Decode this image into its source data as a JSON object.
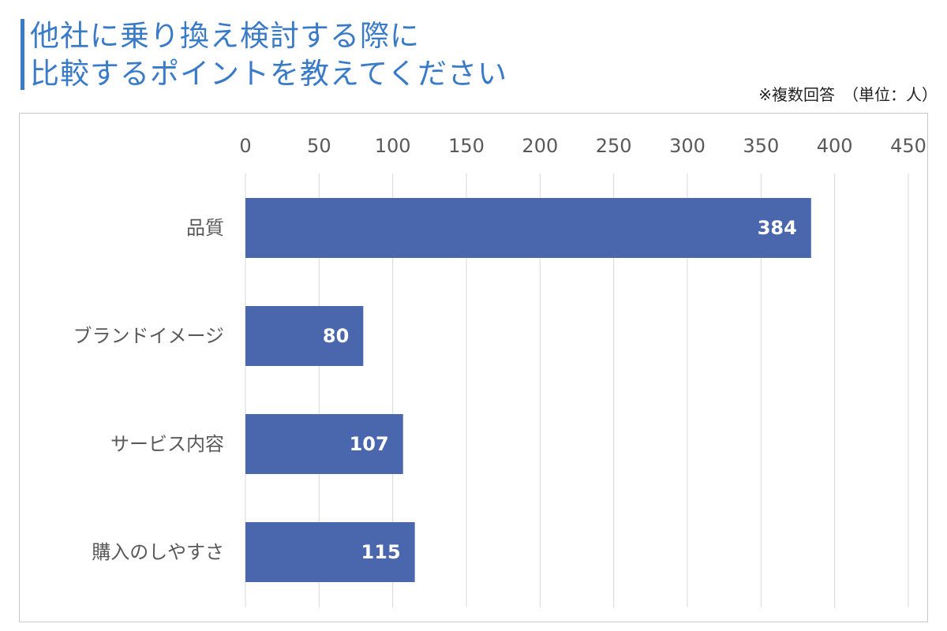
{
  "title_lines": [
    "他社に乗り換え検討する際に",
    "比較するポイントを教えてください"
  ],
  "note": "※複数回答　（単位：人）",
  "colors": {
    "title": "#3a7bc8",
    "bar": "#4a67ae",
    "grid": "#d9d9d9",
    "label": "#595959",
    "value_label": "#ffffff"
  },
  "chart_data": {
    "type": "bar",
    "orientation": "horizontal",
    "categories": [
      "品質",
      "ブランドイメージ",
      "サービス内容",
      "購入のしやすさ"
    ],
    "values": [
      384,
      80,
      107,
      115
    ],
    "x_ticks": [
      0,
      50,
      100,
      150,
      200,
      250,
      300,
      350,
      400,
      450
    ],
    "xlim": [
      0,
      450
    ],
    "x_axis_position": "top",
    "grid": true,
    "data_labels": true
  }
}
